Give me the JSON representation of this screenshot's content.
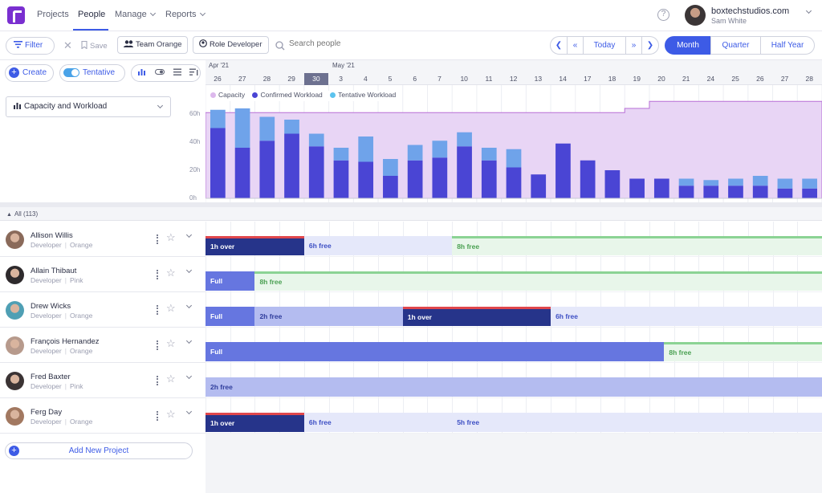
{
  "nav": {
    "items": [
      {
        "label": "Projects",
        "active": false,
        "dropdown": false
      },
      {
        "label": "People",
        "active": true,
        "dropdown": false
      },
      {
        "label": "Manage",
        "active": false,
        "dropdown": true
      },
      {
        "label": "Reports",
        "active": false,
        "dropdown": true
      }
    ],
    "help": "?",
    "account": {
      "org": "boxtechstudios.com",
      "user": "Sam White"
    }
  },
  "toolbar": {
    "filter": "Filter",
    "save": "Save",
    "team_key": "Team",
    "team_value": "Orange",
    "role_key": "Role",
    "role_value": "Developer",
    "search_placeholder": "Search people",
    "today": "Today",
    "views": [
      {
        "label": "Month",
        "active": true
      },
      {
        "label": "Quarter",
        "active": false
      },
      {
        "label": "Half Year",
        "active": false
      }
    ]
  },
  "toolbar2": {
    "create": "Create",
    "tentative": "Tentative",
    "tentative_on": true
  },
  "timeline": {
    "months": [
      "Apr '21",
      "May '21"
    ],
    "days": [
      "26",
      "27",
      "28",
      "29",
      "30",
      "3",
      "4",
      "5",
      "6",
      "7",
      "10",
      "11",
      "12",
      "13",
      "14",
      "17",
      "18",
      "19",
      "20",
      "21",
      "24",
      "25",
      "26",
      "27",
      "28"
    ],
    "selected_day": "30"
  },
  "chart_panel": {
    "dropdown": "Capacity and Workload"
  },
  "chart_data": {
    "type": "bar",
    "title": "",
    "ylabel": "",
    "yticks": [
      "0h",
      "20h",
      "40h",
      "60h"
    ],
    "ylim": [
      0,
      70
    ],
    "legend": [
      {
        "name": "Capacity",
        "color": "#dcb8ec"
      },
      {
        "name": "Confirmed Workload",
        "color": "#5a54e0"
      },
      {
        "name": "Tentative Workload",
        "color": "#5cc3ee"
      }
    ],
    "categories": [
      "26",
      "27",
      "28",
      "29",
      "30",
      "3",
      "4",
      "5",
      "6",
      "7",
      "10",
      "11",
      "12",
      "13",
      "14",
      "17",
      "18",
      "19",
      "20",
      "21",
      "24",
      "25",
      "26",
      "27",
      "28"
    ],
    "series": [
      {
        "name": "Confirmed Workload",
        "values": [
          50,
          36,
          41,
          46,
          37,
          27,
          26,
          16,
          27,
          29,
          37,
          27,
          22,
          17,
          39,
          27,
          20,
          14,
          14,
          9,
          9,
          9,
          9,
          7,
          7
        ]
      },
      {
        "name": "Tentative Workload",
        "values": [
          13,
          28,
          17,
          10,
          9,
          9,
          18,
          12,
          11,
          12,
          10,
          9,
          13,
          0,
          0,
          0,
          0,
          0,
          0,
          5,
          4,
          5,
          7,
          7,
          7
        ]
      },
      {
        "name": "Capacity",
        "values": [
          61,
          61,
          61,
          61,
          61,
          61,
          61,
          61,
          61,
          61,
          61,
          61,
          61,
          61,
          61,
          61,
          61,
          64,
          69,
          69,
          69,
          69,
          69,
          69,
          69
        ]
      }
    ]
  },
  "list": {
    "all_label": "All (113)",
    "add_project": "Add New Project"
  },
  "people": [
    {
      "name": "Allison Willis",
      "role": "Developer",
      "team": "Orange",
      "avatar": "#8a6a5a",
      "bars": [
        {
          "label": "1h over",
          "type": "over",
          "from": 0,
          "to": 4
        },
        {
          "label": "6h free",
          "type": "light",
          "from": 4,
          "to": 10
        },
        {
          "label": "8h free",
          "type": "free",
          "from": 10,
          "to": 25
        }
      ]
    },
    {
      "name": "Allain Thibaut",
      "role": "Developer",
      "team": "Pink",
      "avatar": "#2e2a2c",
      "bars": [
        {
          "label": "Full",
          "type": "full",
          "from": 0,
          "to": 2
        },
        {
          "label": "8h free",
          "type": "free",
          "from": 2,
          "to": 25
        }
      ]
    },
    {
      "name": "Drew Wicks",
      "role": "Developer",
      "team": "Orange",
      "avatar": "#4f9fb4",
      "bars": [
        {
          "label": "Full",
          "type": "full",
          "from": 0,
          "to": 2
        },
        {
          "label": "2h free",
          "type": "part",
          "from": 2,
          "to": 8
        },
        {
          "label": "1h over",
          "type": "over",
          "from": 8,
          "to": 14
        },
        {
          "label": "6h free",
          "type": "light",
          "from": 14,
          "to": 25
        }
      ]
    },
    {
      "name": "François Hernandez",
      "role": "Developer",
      "team": "Orange",
      "avatar": "#b79a8c",
      "bars": [
        {
          "label": "Full",
          "type": "full",
          "from": 0,
          "to": 18.6
        },
        {
          "label": "8h free",
          "type": "free",
          "from": 18.6,
          "to": 25
        }
      ]
    },
    {
      "name": "Fred Baxter",
      "role": "Developer",
      "team": "Pink",
      "avatar": "#3b3334",
      "bars": [
        {
          "label": "2h free",
          "type": "part",
          "from": 0,
          "to": 25
        }
      ]
    },
    {
      "name": "Ferg Day",
      "role": "Developer",
      "team": "Orange",
      "avatar": "#a27860",
      "bars": [
        {
          "label": "1h over",
          "type": "over",
          "from": 0,
          "to": 4
        },
        {
          "label": "6h free",
          "type": "light",
          "from": 4,
          "to": 10
        },
        {
          "label": "5h free",
          "type": "light",
          "from": 10,
          "to": 25
        }
      ]
    }
  ]
}
